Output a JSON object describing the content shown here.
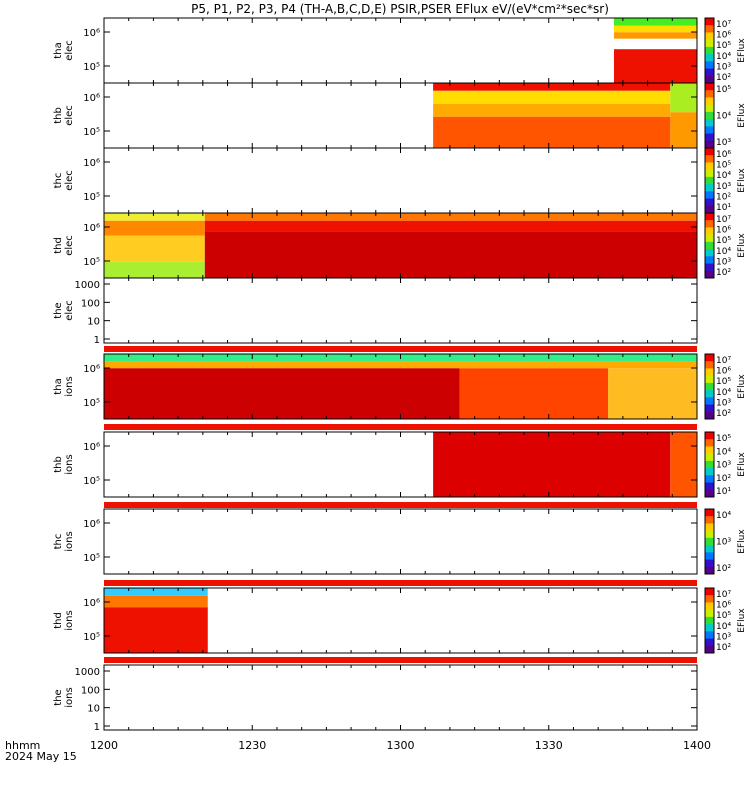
{
  "figure": {
    "title": "P5, P1, P2, P3, P4 (TH-A,B,C,D,E) PSIR,PSER EFlux eV/(eV*cm²*sec*sr)",
    "time_label_left": "hhmm",
    "date_label": "2024 May 15",
    "x_ticks": [
      "1200",
      "1230",
      "1300",
      "1330",
      "1400"
    ],
    "colorbar_label": "EFlux"
  },
  "chart_data": {
    "type": "heatmap",
    "x": {
      "start": "12:00",
      "end": "14:00",
      "ticks": [
        "1200",
        "1230",
        "1300",
        "1330",
        "1400"
      ]
    },
    "panels": [
      {
        "id": "tha-elec",
        "line1": "tha",
        "line2": "elec",
        "y_ticks": [
          "10⁶",
          "10⁵"
        ],
        "colorbar": {
          "ticks": [
            "10⁷",
            "10⁶",
            "10⁵",
            "10⁴",
            "10³",
            "10²"
          ],
          "label": "EFlux"
        },
        "blocks": [
          {
            "t0": 0.86,
            "t1": 1.0,
            "e0": 0.0,
            "e1": 0.12,
            "color": "#44ee22"
          },
          {
            "t0": 0.86,
            "t1": 1.0,
            "e0": 0.12,
            "e1": 0.22,
            "color": "#ffdd00"
          },
          {
            "t0": 0.86,
            "t1": 1.0,
            "e0": 0.22,
            "e1": 0.32,
            "color": "#ff9900"
          },
          {
            "t0": 0.86,
            "t1": 1.0,
            "e0": 0.32,
            "e1": 0.48,
            "color": "#ffffff"
          },
          {
            "t0": 0.86,
            "t1": 1.0,
            "e0": 0.48,
            "e1": 1.0,
            "color": "#ee1100"
          }
        ]
      },
      {
        "id": "thb-elec",
        "line1": "thb",
        "line2": "elec",
        "y_ticks": [
          "10⁶",
          "10⁵"
        ],
        "colorbar": {
          "ticks": [
            "10⁵",
            "10⁴",
            "10³"
          ],
          "label": "EFlux"
        },
        "blocks": [
          {
            "t0": 0.555,
            "t1": 0.955,
            "e0": 0.0,
            "e1": 0.12,
            "color": "#ee1100"
          },
          {
            "t0": 0.555,
            "t1": 0.955,
            "e0": 0.12,
            "e1": 0.32,
            "color": "#ffdd00"
          },
          {
            "t0": 0.555,
            "t1": 0.955,
            "e0": 0.32,
            "e1": 0.52,
            "color": "#ffaa00"
          },
          {
            "t0": 0.555,
            "t1": 0.955,
            "e0": 0.52,
            "e1": 1.0,
            "color": "#ff5500"
          },
          {
            "t0": 0.955,
            "t1": 1.0,
            "e0": 0.0,
            "e1": 0.45,
            "color": "#aaee22"
          },
          {
            "t0": 0.955,
            "t1": 1.0,
            "e0": 0.45,
            "e1": 1.0,
            "color": "#ff9900"
          }
        ]
      },
      {
        "id": "thc-elec",
        "line1": "thc",
        "line2": "elec",
        "y_ticks": [
          "10⁶",
          "10⁵"
        ],
        "colorbar": {
          "ticks": [
            "10⁶",
            "10⁵",
            "10⁴",
            "10³",
            "10²",
            "10¹"
          ],
          "label": "EFlux"
        },
        "blocks": []
      },
      {
        "id": "thd-elec",
        "line1": "thd",
        "line2": "elec",
        "y_ticks": [
          "10⁶",
          "10⁵"
        ],
        "colorbar": {
          "ticks": [
            "10⁷",
            "10⁶",
            "10⁵",
            "10⁴",
            "10³",
            "10²"
          ],
          "label": "EFlux"
        },
        "blocks": [
          {
            "t0": 0.0,
            "t1": 0.17,
            "e0": 0.0,
            "e1": 0.12,
            "color": "#eeee33"
          },
          {
            "t0": 0.0,
            "t1": 0.17,
            "e0": 0.12,
            "e1": 0.35,
            "color": "#ff8800"
          },
          {
            "t0": 0.0,
            "t1": 0.17,
            "e0": 0.35,
            "e1": 0.75,
            "color": "#ffcc22"
          },
          {
            "t0": 0.0,
            "t1": 0.17,
            "e0": 0.75,
            "e1": 1.0,
            "color": "#aaee33"
          },
          {
            "t0": 0.17,
            "t1": 1.0,
            "e0": 0.0,
            "e1": 0.12,
            "color": "#ff7700"
          },
          {
            "t0": 0.17,
            "t1": 1.0,
            "e0": 0.12,
            "e1": 0.28,
            "color": "#ee1100"
          },
          {
            "t0": 0.17,
            "t1": 1.0,
            "e0": 0.28,
            "e1": 1.0,
            "color": "#cc0000"
          }
        ]
      },
      {
        "id": "the-elec",
        "line1": "the",
        "line2": "elec",
        "y_ticks": [
          "1000",
          "100",
          "10",
          "1"
        ],
        "colorbar": null,
        "blocks": []
      },
      {
        "id": "tha-ions",
        "line1": "tha",
        "line2": "ions",
        "y_ticks": [
          "10⁶",
          "10⁵"
        ],
        "colorbar": {
          "ticks": [
            "10⁷",
            "10⁶",
            "10⁵",
            "10⁴",
            "10³",
            "10²"
          ],
          "label": "EFlux"
        },
        "blocks": [
          {
            "t0": 0.0,
            "t1": 1.0,
            "e0": 0.0,
            "e1": 0.12,
            "color": "#33ee88"
          },
          {
            "t0": 0.0,
            "t1": 1.0,
            "e0": 0.12,
            "e1": 0.22,
            "color": "#ffaa00"
          },
          {
            "t0": 0.0,
            "t1": 0.6,
            "e0": 0.22,
            "e1": 1.0,
            "color": "#cc0000"
          },
          {
            "t0": 0.6,
            "t1": 0.85,
            "e0": 0.22,
            "e1": 1.0,
            "color": "#ff4400"
          },
          {
            "t0": 0.85,
            "t1": 1.0,
            "e0": 0.22,
            "e1": 1.0,
            "color": "#ffbb22"
          }
        ]
      },
      {
        "id": "thb-ions",
        "line1": "thb",
        "line2": "ions",
        "y_ticks": [
          "10⁶",
          "10⁵"
        ],
        "colorbar": {
          "ticks": [
            "10⁵",
            "10⁴",
            "10³",
            "10²",
            "10¹"
          ],
          "label": "EFlux"
        },
        "blocks": [
          {
            "t0": 0.555,
            "t1": 0.955,
            "e0": 0.0,
            "e1": 1.0,
            "color": "#dd0000"
          },
          {
            "t0": 0.955,
            "t1": 1.0,
            "e0": 0.0,
            "e1": 1.0,
            "color": "#ff5500"
          }
        ]
      },
      {
        "id": "thc-ions",
        "line1": "thc",
        "line2": "ions",
        "y_ticks": [
          "10⁶",
          "10⁵"
        ],
        "colorbar": {
          "ticks": [
            "10⁴",
            "10³",
            "10²"
          ],
          "label": "EFlux"
        },
        "blocks": []
      },
      {
        "id": "thd-ions",
        "line1": "thd",
        "line2": "ions",
        "y_ticks": [
          "10⁶",
          "10⁵"
        ],
        "colorbar": {
          "ticks": [
            "10⁷",
            "10⁶",
            "10⁵",
            "10⁴",
            "10³",
            "10²"
          ],
          "label": "EFlux"
        },
        "blocks": [
          {
            "t0": 0.0,
            "t1": 0.175,
            "e0": 0.0,
            "e1": 0.12,
            "color": "#33ccff"
          },
          {
            "t0": 0.0,
            "t1": 0.175,
            "e0": 0.12,
            "e1": 0.3,
            "color": "#ff7700"
          },
          {
            "t0": 0.0,
            "t1": 0.175,
            "e0": 0.3,
            "e1": 1.0,
            "color": "#ee1100"
          }
        ]
      },
      {
        "id": "the-ions",
        "line1": "the",
        "line2": "ions",
        "y_ticks": [
          "1000",
          "100",
          "10",
          "1"
        ],
        "colorbar": null,
        "blocks": []
      }
    ]
  }
}
